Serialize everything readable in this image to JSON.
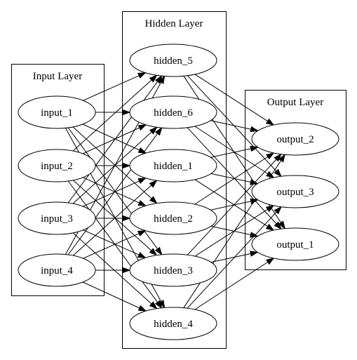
{
  "clusters": [
    {
      "id": "input",
      "label": "Input Layer"
    },
    {
      "id": "hidden",
      "label": "Hidden Layer"
    },
    {
      "id": "output",
      "label": "Output Layer"
    }
  ],
  "nodes": [
    {
      "id": "input_1",
      "label": "input_1",
      "cluster": "input"
    },
    {
      "id": "input_2",
      "label": "input_2",
      "cluster": "input"
    },
    {
      "id": "input_3",
      "label": "input_3",
      "cluster": "input"
    },
    {
      "id": "input_4",
      "label": "input_4",
      "cluster": "input"
    },
    {
      "id": "hidden_5",
      "label": "hidden_5",
      "cluster": "hidden"
    },
    {
      "id": "hidden_6",
      "label": "hidden_6",
      "cluster": "hidden"
    },
    {
      "id": "hidden_1",
      "label": "hidden_1",
      "cluster": "hidden"
    },
    {
      "id": "hidden_2",
      "label": "hidden_2",
      "cluster": "hidden"
    },
    {
      "id": "hidden_3",
      "label": "hidden_3",
      "cluster": "hidden"
    },
    {
      "id": "hidden_4",
      "label": "hidden_4",
      "cluster": "hidden"
    },
    {
      "id": "output_2",
      "label": "output_2",
      "cluster": "output"
    },
    {
      "id": "output_3",
      "label": "output_3",
      "cluster": "output"
    },
    {
      "id": "output_1",
      "label": "output_1",
      "cluster": "output"
    }
  ],
  "edges": [
    [
      "input_1",
      "hidden_5"
    ],
    [
      "input_1",
      "hidden_6"
    ],
    [
      "input_1",
      "hidden_1"
    ],
    [
      "input_1",
      "hidden_2"
    ],
    [
      "input_1",
      "hidden_3"
    ],
    [
      "input_1",
      "hidden_4"
    ],
    [
      "input_2",
      "hidden_5"
    ],
    [
      "input_2",
      "hidden_6"
    ],
    [
      "input_2",
      "hidden_1"
    ],
    [
      "input_2",
      "hidden_2"
    ],
    [
      "input_2",
      "hidden_3"
    ],
    [
      "input_2",
      "hidden_4"
    ],
    [
      "input_3",
      "hidden_5"
    ],
    [
      "input_3",
      "hidden_6"
    ],
    [
      "input_3",
      "hidden_1"
    ],
    [
      "input_3",
      "hidden_2"
    ],
    [
      "input_3",
      "hidden_3"
    ],
    [
      "input_3",
      "hidden_4"
    ],
    [
      "input_4",
      "hidden_5"
    ],
    [
      "input_4",
      "hidden_6"
    ],
    [
      "input_4",
      "hidden_1"
    ],
    [
      "input_4",
      "hidden_2"
    ],
    [
      "input_4",
      "hidden_3"
    ],
    [
      "input_4",
      "hidden_4"
    ],
    [
      "hidden_5",
      "output_2"
    ],
    [
      "hidden_5",
      "output_3"
    ],
    [
      "hidden_5",
      "output_1"
    ],
    [
      "hidden_6",
      "output_2"
    ],
    [
      "hidden_6",
      "output_3"
    ],
    [
      "hidden_6",
      "output_1"
    ],
    [
      "hidden_1",
      "output_2"
    ],
    [
      "hidden_1",
      "output_3"
    ],
    [
      "hidden_1",
      "output_1"
    ],
    [
      "hidden_2",
      "output_2"
    ],
    [
      "hidden_2",
      "output_3"
    ],
    [
      "hidden_2",
      "output_1"
    ],
    [
      "hidden_3",
      "output_2"
    ],
    [
      "hidden_3",
      "output_3"
    ],
    [
      "hidden_3",
      "output_1"
    ],
    [
      "hidden_4",
      "output_2"
    ],
    [
      "hidden_4",
      "output_3"
    ],
    [
      "hidden_4",
      "output_1"
    ]
  ]
}
